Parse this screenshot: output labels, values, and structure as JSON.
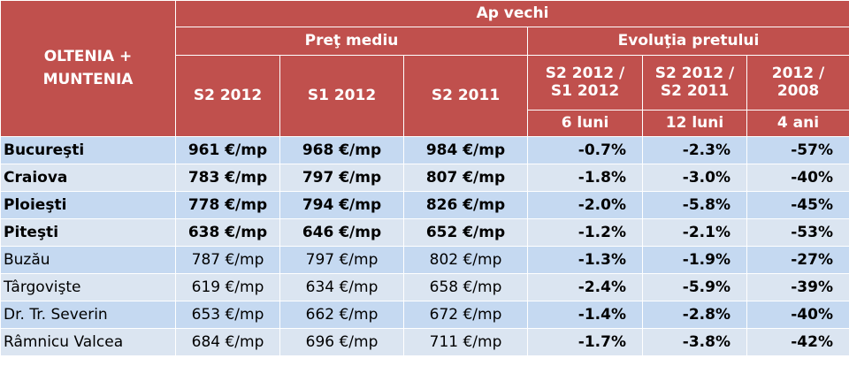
{
  "header": {
    "corner_line1": "OLTENIA +",
    "corner_line2": "MUNTENIA",
    "group": "Ap vechi",
    "price_group": "Preţ mediu",
    "evolution_group": "Evoluţia pretului",
    "price_cols": [
      "S2 2012",
      "S1 2012",
      "S2 2011"
    ],
    "evo_cols": [
      "S2 2012  /  S1 2012",
      "S2 2012  /  S2 2011",
      "2012  /  2008"
    ],
    "evo_periods": [
      "6 luni",
      "12 luni",
      "4 ani"
    ]
  },
  "rows": [
    {
      "city": "Bucureşti",
      "bold": true,
      "s2_2012": "961 €/mp",
      "s1_2012": "968 €/mp",
      "s2_2011": "984 €/mp",
      "m6": "-0.7%",
      "m12": "-2.3%",
      "y4": "-57%"
    },
    {
      "city": "Craiova",
      "bold": true,
      "s2_2012": "783 €/mp",
      "s1_2012": "797 €/mp",
      "s2_2011": "807 €/mp",
      "m6": "-1.8%",
      "m12": "-3.0%",
      "y4": "-40%"
    },
    {
      "city": "Ploieşti",
      "bold": true,
      "s2_2012": "778 €/mp",
      "s1_2012": "794 €/mp",
      "s2_2011": "826 €/mp",
      "m6": "-2.0%",
      "m12": "-5.8%",
      "y4": "-45%"
    },
    {
      "city": "Piteşti",
      "bold": true,
      "s2_2012": "638 €/mp",
      "s1_2012": "646 €/mp",
      "s2_2011": "652 €/mp",
      "m6": "-1.2%",
      "m12": "-2.1%",
      "y4": "-53%"
    },
    {
      "city": "Buzău",
      "bold": false,
      "s2_2012": "787 €/mp",
      "s1_2012": "797 €/mp",
      "s2_2011": "802 €/mp",
      "m6": "-1.3%",
      "m12": "-1.9%",
      "y4": "-27%"
    },
    {
      "city": "Târgovişte",
      "bold": false,
      "s2_2012": "619 €/mp",
      "s1_2012": "634 €/mp",
      "s2_2011": "658 €/mp",
      "m6": "-2.4%",
      "m12": "-5.9%",
      "y4": "-39%"
    },
    {
      "city": "Dr. Tr. Severin",
      "bold": false,
      "s2_2012": "653 €/mp",
      "s1_2012": "662 €/mp",
      "s2_2011": "672 €/mp",
      "m6": "-1.4%",
      "m12": "-2.8%",
      "y4": "-40%"
    },
    {
      "city": "Râmnicu Valcea",
      "bold": false,
      "s2_2012": "684 €/mp",
      "s1_2012": "696 €/mp",
      "s2_2011": "711 €/mp",
      "m6": "-1.7%",
      "m12": "-3.8%",
      "y4": "-42%"
    }
  ]
}
